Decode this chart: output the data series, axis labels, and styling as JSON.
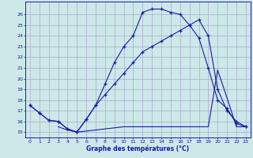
{
  "xlabel": "Graphe des températures (°C)",
  "background_color": "#cce8e8",
  "grid_color": "#aaaacc",
  "line_color": "#1a1aaa",
  "xlim": [
    -0.5,
    23.5
  ],
  "ylim": [
    14.5,
    27.2
  ],
  "yticks": [
    15,
    16,
    17,
    18,
    19,
    20,
    21,
    22,
    23,
    24,
    25,
    26
  ],
  "xticks": [
    0,
    1,
    2,
    3,
    4,
    5,
    6,
    7,
    8,
    9,
    10,
    11,
    12,
    13,
    14,
    15,
    16,
    17,
    18,
    19,
    20,
    21,
    22,
    23
  ],
  "line1_x": [
    0,
    1,
    2,
    3,
    4,
    5,
    6,
    7,
    8,
    9,
    10,
    11,
    12,
    13,
    14,
    15,
    16,
    17,
    18,
    19,
    20,
    21,
    22,
    23
  ],
  "line1_y": [
    17.5,
    16.8,
    16.1,
    16.0,
    15.3,
    15.0,
    16.2,
    17.5,
    18.5,
    19.5,
    20.5,
    21.5,
    22.5,
    23.0,
    23.5,
    24.0,
    24.5,
    25.0,
    25.5,
    24.0,
    19.0,
    17.0,
    16.0,
    15.5
  ],
  "line2_x": [
    0,
    1,
    2,
    3,
    4,
    5,
    6,
    7,
    8,
    9,
    10,
    11,
    12,
    13,
    14,
    15,
    16,
    17,
    18,
    19,
    20,
    21,
    22,
    23
  ],
  "line2_y": [
    17.5,
    16.8,
    16.1,
    16.0,
    15.3,
    15.0,
    16.2,
    17.5,
    19.5,
    21.5,
    23.0,
    24.0,
    26.2,
    26.5,
    26.5,
    26.2,
    26.0,
    25.0,
    23.8,
    21.0,
    18.0,
    17.2,
    15.8,
    15.5
  ],
  "line3_x": [
    3,
    4,
    5,
    10,
    19,
    20,
    21,
    22,
    23
  ],
  "line3_y": [
    15.5,
    15.2,
    15.0,
    15.5,
    15.5,
    20.8,
    18.2,
    15.5,
    15.5
  ]
}
